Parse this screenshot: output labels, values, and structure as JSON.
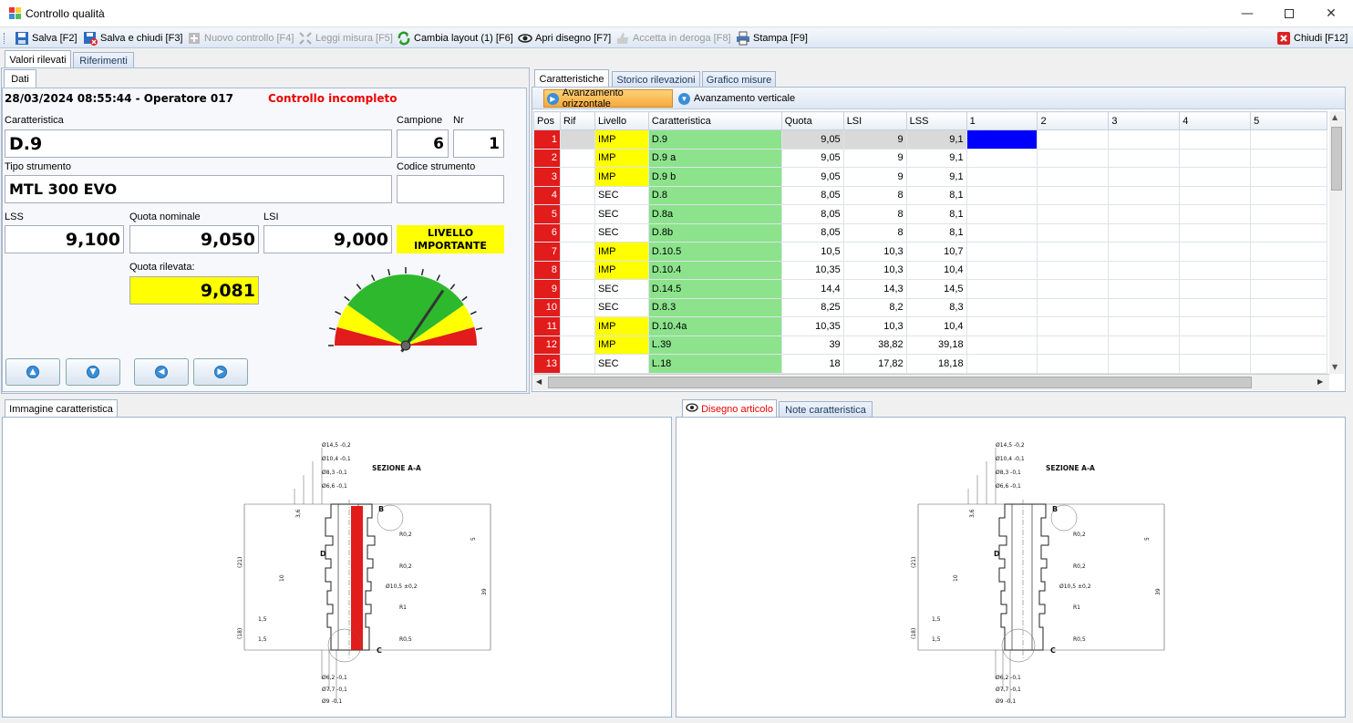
{
  "window": {
    "title": "Controllo qualità"
  },
  "toolbar": [
    {
      "label": "Salva [F2]",
      "icon": "save-icon",
      "enabled": true
    },
    {
      "label": "Salva e chiudi [F3]",
      "icon": "save-close-icon",
      "enabled": true
    },
    {
      "label": "Nuovo controllo [F4]",
      "icon": "new-icon",
      "enabled": false
    },
    {
      "label": "Leggi misura [F5]",
      "icon": "measure-icon",
      "enabled": false
    },
    {
      "label": "Cambia layout (1) [F6]",
      "icon": "refresh-icon",
      "enabled": true
    },
    {
      "label": "Apri disegno [F7]",
      "icon": "eye-icon",
      "enabled": true
    },
    {
      "label": "Accetta in deroga [F8]",
      "icon": "thumb-icon",
      "enabled": false
    },
    {
      "label": "Stampa [F9]",
      "icon": "print-icon",
      "enabled": true
    }
  ],
  "close_label": "Chiudi [F12]",
  "left_tabs": [
    "Valori rilevati",
    "Riferimenti"
  ],
  "dati_tab": "Dati",
  "header": {
    "datetime_operator": "28/03/2024 08:55:44 - Operatore 017",
    "status": "Controllo incompleto"
  },
  "labels": {
    "caratteristica": "Caratteristica",
    "campione": "Campione",
    "nr": "Nr",
    "tipo_strumento": "Tipo strumento",
    "codice_strumento": "Codice strumento",
    "lss": "LSS",
    "quota_nominale": "Quota nominale",
    "lsi": "LSI",
    "quota_rilevata": "Quota rilevata:"
  },
  "values": {
    "caratteristica": "D.9",
    "campione": "6",
    "nr": "1",
    "tipo_strumento": "MTL 300 EVO",
    "codice_strumento": "",
    "lss": "9,100",
    "quota_nominale": "9,050",
    "lsi": "9,000",
    "livello": "LIVELLO IMPORTANTE",
    "quota_rilevata": "9,081"
  },
  "gauge": {
    "value": 9.081,
    "min": 9.0,
    "max": 9.1
  },
  "right_tabs": [
    "Caratteristiche",
    "Storico rilevazioni",
    "Grafico misure"
  ],
  "advance": {
    "horizontal": "Avanzamento orizzontale",
    "vertical": "Avanzamento verticale"
  },
  "grid": {
    "columns": [
      "Pos",
      "Rif",
      "Livello",
      "Caratteristica",
      "Quota",
      "LSI",
      "LSS",
      "1",
      "2",
      "3",
      "4",
      "5"
    ],
    "rows": [
      [
        "1",
        "",
        "IMP",
        "D.9",
        "9,05",
        "9",
        "9,1"
      ],
      [
        "2",
        "",
        "IMP",
        "D.9 a",
        "9,05",
        "9",
        "9,1"
      ],
      [
        "3",
        "",
        "IMP",
        "D.9 b",
        "9,05",
        "9",
        "9,1"
      ],
      [
        "4",
        "",
        "SEC",
        "D.8",
        "8,05",
        "8",
        "8,1"
      ],
      [
        "5",
        "",
        "SEC",
        "D.8a",
        "8,05",
        "8",
        "8,1"
      ],
      [
        "6",
        "",
        "SEC",
        "D.8b",
        "8,05",
        "8",
        "8,1"
      ],
      [
        "7",
        "",
        "IMP",
        "D.10.5",
        "10,5",
        "10,3",
        "10,7"
      ],
      [
        "8",
        "",
        "IMP",
        "D.10.4",
        "10,35",
        "10,3",
        "10,4"
      ],
      [
        "9",
        "",
        "SEC",
        "D.14.5",
        "14,4",
        "14,3",
        "14,5"
      ],
      [
        "10",
        "",
        "SEC",
        "D.8.3",
        "8,25",
        "8,2",
        "8,3"
      ],
      [
        "11",
        "",
        "IMP",
        "D.10.4a",
        "10,35",
        "10,3",
        "10,4"
      ],
      [
        "12",
        "",
        "IMP",
        "L.39",
        "39",
        "38,82",
        "39,18"
      ],
      [
        "13",
        "",
        "SEC",
        "L.18",
        "18",
        "17,82",
        "18,18"
      ]
    ]
  },
  "bottom_left_tab": "Immagine caratteristica",
  "bottom_right_tabs": [
    "Disegno articolo",
    "Note caratteristica"
  ],
  "drawing": {
    "section_title": "SEZIONE A-A",
    "dims_top": [
      "Ø14,5 -0,2",
      "Ø10,4 -0,1",
      "Ø8,3 -0,1",
      "Ø6,6 -0,1"
    ],
    "dims_bottom": [
      "Ø6,2 -0,1",
      "Ø7,7 -0,1",
      "Ø9 -0,1"
    ],
    "labels": [
      "B",
      "D",
      "C"
    ],
    "radii": [
      "R0,2",
      "R0,2",
      "R1",
      "R0,5"
    ],
    "extra": [
      "Ø10,5 ±0,2",
      "(21)",
      "(18)",
      "39",
      "1,5",
      "1,5",
      "5",
      "3,6",
      "10"
    ]
  },
  "colors": {
    "red": "#e21b1b",
    "yellow": "#ffff00",
    "green": "#8ce38c",
    "selected": "#0000ff"
  }
}
